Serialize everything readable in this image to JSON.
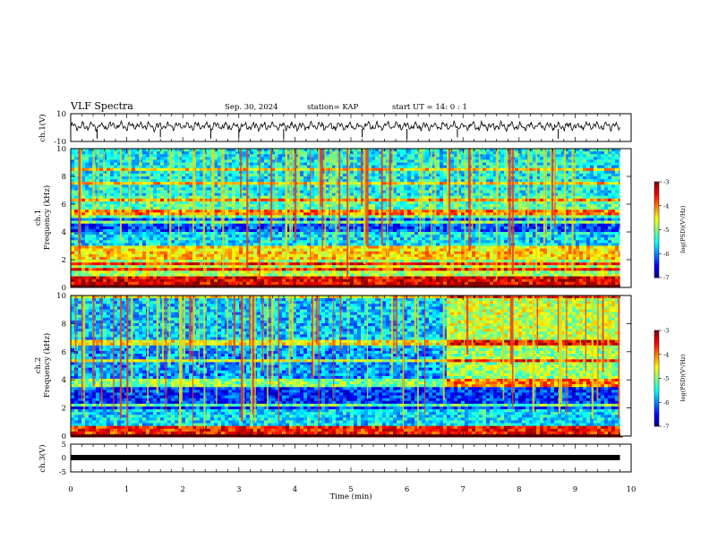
{
  "header": {
    "title": "VLF Spectra",
    "date": "Sep. 30, 2024",
    "station": "station= KAP",
    "start_ut": "start  UT =   14: 0   : 1"
  },
  "chart_data": [
    {
      "type": "line",
      "ylabel": "ch.1(V)",
      "ylim": [
        -10,
        10
      ],
      "y_ticks": [
        "10",
        "-10"
      ],
      "xlim": [
        0,
        10
      ],
      "description_values": {
        "mean": 0,
        "amplitude": 2.5
      }
    },
    {
      "type": "heatmap",
      "channel": "ch.1",
      "ylabel_1": "ch.1",
      "ylabel_2": "Frequency (kHz)",
      "ylim": [
        0,
        10
      ],
      "y_ticks": [
        "0",
        "2",
        "4",
        "6",
        "8",
        "10"
      ],
      "xlim": [
        0,
        10
      ],
      "data_end_min": 9.8,
      "colorbar": {
        "label": "log(PSD)(V²/Hz)",
        "range": [
          -7,
          -3
        ],
        "ticks": [
          "-3",
          "-4",
          "-5",
          "-6",
          "-7"
        ],
        "colormap": "jet"
      },
      "bands_khz": [
        {
          "lo": 0,
          "hi": 0.8,
          "level": -3.4
        },
        {
          "lo": 0.8,
          "hi": 2.0,
          "level": -4.8
        },
        {
          "lo": 2.0,
          "hi": 2.6,
          "level": -4.3
        },
        {
          "lo": 2.6,
          "hi": 4.1,
          "level": -5.6
        },
        {
          "lo": 4.1,
          "hi": 5.0,
          "level": -6.2
        },
        {
          "lo": 5.0,
          "hi": 6.6,
          "level": -5.2
        },
        {
          "lo": 6.6,
          "hi": 10.0,
          "level": -5.5
        }
      ]
    },
    {
      "type": "heatmap",
      "channel": "ch.2",
      "ylabel_1": "ch.2",
      "ylabel_2": "Frequency (kHz)",
      "ylim": [
        0,
        10
      ],
      "y_ticks": [
        "0",
        "2",
        "4",
        "6",
        "8",
        "10"
      ],
      "xlim": [
        0,
        10
      ],
      "data_end_min": 9.8,
      "transition_min": 6.65,
      "colorbar": {
        "label": "log(PSD)(V²/Hz)",
        "range": [
          -7,
          -3
        ],
        "ticks": [
          "-3",
          "-4",
          "-5",
          "-6",
          "-7"
        ],
        "colormap": "jet"
      },
      "bands_khz": [
        {
          "lo": 0,
          "hi": 0.8,
          "level": -3.6
        },
        {
          "lo": 0.8,
          "hi": 2.0,
          "level": -5.6
        },
        {
          "lo": 2.0,
          "hi": 3.4,
          "level": -6.3
        },
        {
          "lo": 3.4,
          "hi": 4.0,
          "level": -5.0
        },
        {
          "lo": 4.0,
          "hi": 6.2,
          "level": -5.9
        },
        {
          "lo": 6.2,
          "hi": 10.0,
          "level": -5.7
        }
      ]
    },
    {
      "type": "line",
      "ylabel": "ch.3(V)",
      "ylim": [
        -5,
        5
      ],
      "y_ticks": [
        "5",
        "0",
        "-5"
      ],
      "xlim": [
        0,
        10
      ],
      "constant_value": 0
    }
  ],
  "x_axis": {
    "label": "Time  (min)",
    "ticks": [
      "0",
      "1",
      "2",
      "3",
      "4",
      "5",
      "6",
      "7",
      "8",
      "9",
      "10"
    ]
  },
  "colors": {
    "trace": "#000000",
    "frame": "#000000"
  }
}
